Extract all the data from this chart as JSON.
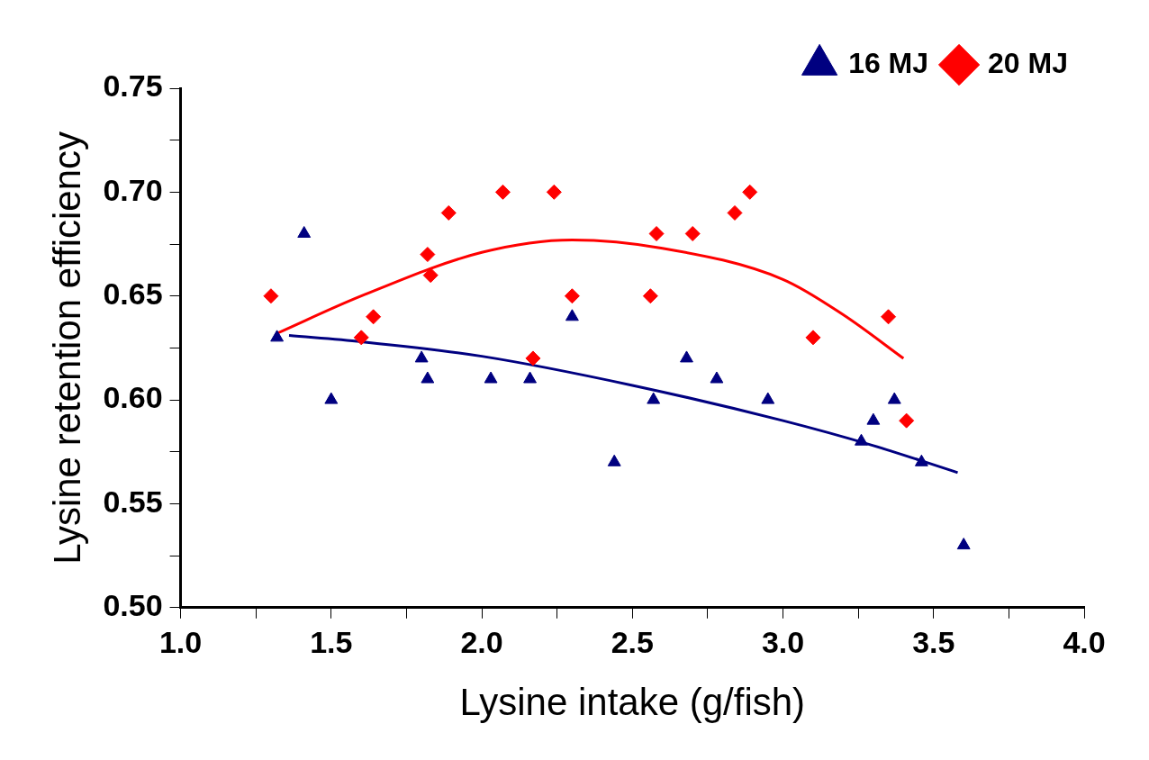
{
  "chart_data": {
    "type": "scatter",
    "xlabel": "Lysine intake (g/fish)",
    "ylabel": "Lysine retention efficiency",
    "xlim": [
      1.0,
      4.0
    ],
    "ylim": [
      0.5,
      0.75
    ],
    "xticks": [
      {
        "value": 1.0,
        "label": "1.0"
      },
      {
        "value": 1.25,
        "label": null
      },
      1.5,
      {
        "value": 1.75,
        "label": null
      },
      {
        "value": 2.0,
        "label": "2.0"
      },
      {
        "value": 2.25,
        "label": null
      },
      2.5,
      {
        "value": 2.75,
        "label": null
      },
      {
        "value": 3.0,
        "label": "3.0"
      },
      {
        "value": 3.25,
        "label": null
      },
      3.5,
      {
        "value": 3.75,
        "label": null
      },
      {
        "value": 4.0,
        "label": "4.0"
      }
    ],
    "yticks": [
      {
        "value": 0.5,
        "label": "0.50"
      },
      {
        "value": 0.525,
        "label": null
      },
      0.55,
      {
        "value": 0.575,
        "label": null
      },
      {
        "value": 0.6,
        "label": "0.60"
      },
      {
        "value": 0.625,
        "label": null
      },
      0.65,
      {
        "value": 0.675,
        "label": null
      },
      {
        "value": 0.7,
        "label": "0.70"
      },
      {
        "value": 0.725,
        "label": null
      },
      0.75
    ],
    "grid": false,
    "legend": "top right",
    "series": [
      {
        "name": "16 MJ",
        "color": "#000080",
        "type": "scatter",
        "marker": "triangle",
        "x": [
          1.32,
          1.41,
          1.5,
          1.8,
          1.82,
          2.03,
          2.16,
          2.3,
          2.44,
          2.57,
          2.68,
          2.78,
          2.95,
          3.26,
          3.3,
          3.37,
          3.46,
          3.6
        ],
        "values": [
          0.63,
          0.68,
          0.6,
          0.62,
          0.61,
          0.61,
          0.61,
          0.64,
          0.57,
          0.6,
          0.62,
          0.61,
          0.6,
          0.58,
          0.59,
          0.6,
          0.57,
          0.53
        ]
      },
      {
        "name": "20 MJ",
        "color": "#ff0000",
        "type": "scatter",
        "marker": "diamond",
        "x": [
          1.3,
          1.6,
          1.64,
          1.82,
          1.83,
          1.89,
          2.07,
          2.17,
          2.24,
          2.3,
          2.56,
          2.58,
          2.7,
          2.84,
          2.89,
          3.1,
          3.35,
          3.41
        ],
        "values": [
          0.65,
          0.63,
          0.64,
          0.67,
          0.66,
          0.69,
          0.7,
          0.62,
          0.7,
          0.65,
          0.65,
          0.68,
          0.68,
          0.69,
          0.7,
          0.63,
          0.64,
          0.59
        ]
      },
      {
        "color": "#000080",
        "type": "line",
        "marker": "none",
        "x": [
          1.36,
          1.6,
          2.0,
          2.5,
          3.0,
          3.3,
          3.58
        ],
        "values": [
          0.631,
          0.628,
          0.621,
          0.607,
          0.59,
          0.578,
          0.565
        ]
      },
      {
        "color": "#ff0000",
        "type": "line",
        "marker": "none",
        "x": [
          1.32,
          1.6,
          2.0,
          2.3,
          2.6,
          3.0,
          3.2,
          3.4
        ],
        "values": [
          0.632,
          0.65,
          0.671,
          0.677,
          0.673,
          0.658,
          0.641,
          0.62
        ]
      }
    ]
  }
}
